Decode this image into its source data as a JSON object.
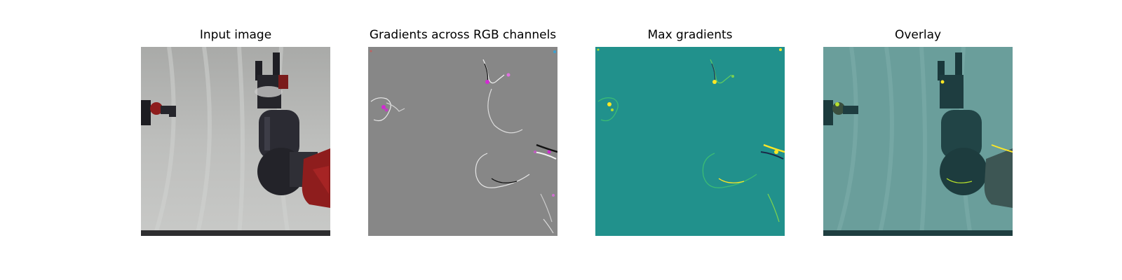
{
  "panels": [
    {
      "title": "Input image"
    },
    {
      "title": "Gradients across RGB channels"
    },
    {
      "title": "Max gradients"
    },
    {
      "title": "Overlay"
    }
  ],
  "colors": {
    "background_cloth": "#b9bab8",
    "robot_dark": "#2a2a32",
    "robot_red": "#8e1d1d",
    "gradient_gray": "#878787",
    "max_gradient_teal": "#21918c",
    "highlight_yellow": "#fde725",
    "highlight_magenta": "#d22ad2"
  }
}
